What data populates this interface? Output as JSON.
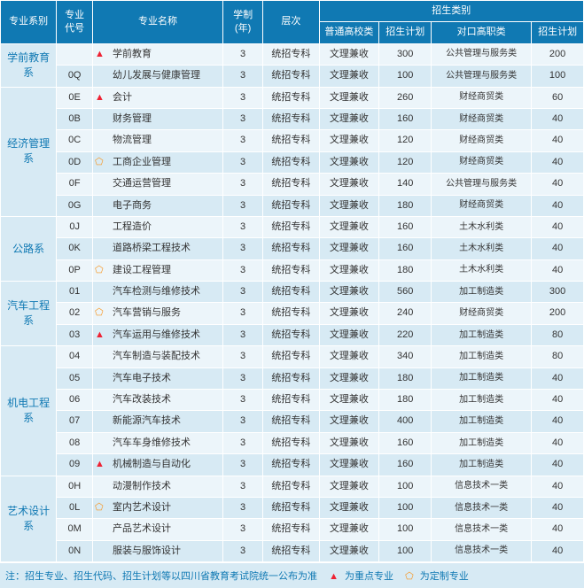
{
  "header": {
    "dept": "专业系别",
    "code": "专业\n代号",
    "name": "专业名称",
    "years": "学制\n(年)",
    "level": "层次",
    "enroll_group": "招生类别",
    "cat1": "普通高校类",
    "plan1": "招生计划",
    "cat2": "对口高职类",
    "plan2": "招生计划"
  },
  "departments": [
    {
      "name": "学前教育系",
      "rows": [
        {
          "code": "",
          "marker": "tri",
          "major": "学前教育",
          "years": "3",
          "level": "统招专科",
          "cat1": "文理兼收",
          "plan1": "300",
          "cat2": "公共管理与服务类",
          "plan2": "200"
        },
        {
          "code": "0Q",
          "marker": "",
          "major": "幼儿发展与健康管理",
          "years": "3",
          "level": "统招专科",
          "cat1": "文理兼收",
          "plan1": "100",
          "cat2": "公共管理与服务类",
          "plan2": "100"
        }
      ]
    },
    {
      "name": "经济管理系",
      "rows": [
        {
          "code": "0E",
          "marker": "tri",
          "major": "会计",
          "years": "3",
          "level": "统招专科",
          "cat1": "文理兼收",
          "plan1": "260",
          "cat2": "财经商贸类",
          "plan2": "60"
        },
        {
          "code": "0B",
          "marker": "",
          "major": "财务管理",
          "years": "3",
          "level": "统招专科",
          "cat1": "文理兼收",
          "plan1": "160",
          "cat2": "财经商贸类",
          "plan2": "40"
        },
        {
          "code": "0C",
          "marker": "",
          "major": "物流管理",
          "years": "3",
          "level": "统招专科",
          "cat1": "文理兼收",
          "plan1": "120",
          "cat2": "财经商贸类",
          "plan2": "40"
        },
        {
          "code": "0D",
          "marker": "pent",
          "major": "工商企业管理",
          "years": "3",
          "level": "统招专科",
          "cat1": "文理兼收",
          "plan1": "120",
          "cat2": "财经商贸类",
          "plan2": "40"
        },
        {
          "code": "0F",
          "marker": "",
          "major": "交通运营管理",
          "years": "3",
          "level": "统招专科",
          "cat1": "文理兼收",
          "plan1": "140",
          "cat2": "公共管理与服务类",
          "plan2": "40"
        },
        {
          "code": "0G",
          "marker": "",
          "major": "电子商务",
          "years": "3",
          "level": "统招专科",
          "cat1": "文理兼收",
          "plan1": "180",
          "cat2": "财经商贸类",
          "plan2": "40"
        }
      ]
    },
    {
      "name": "公路系",
      "rows": [
        {
          "code": "0J",
          "marker": "",
          "major": "工程造价",
          "years": "3",
          "level": "统招专科",
          "cat1": "文理兼收",
          "plan1": "160",
          "cat2": "土木水利类",
          "plan2": "40"
        },
        {
          "code": "0K",
          "marker": "",
          "major": "道路桥梁工程技术",
          "years": "3",
          "level": "统招专科",
          "cat1": "文理兼收",
          "plan1": "160",
          "cat2": "土木水利类",
          "plan2": "40"
        },
        {
          "code": "0P",
          "marker": "pent",
          "major": "建设工程管理",
          "years": "3",
          "level": "统招专科",
          "cat1": "文理兼收",
          "plan1": "180",
          "cat2": "土木水利类",
          "plan2": "40"
        }
      ]
    },
    {
      "name": "汽车工程系",
      "rows": [
        {
          "code": "01",
          "marker": "",
          "major": "汽车检测与维修技术",
          "years": "3",
          "level": "统招专科",
          "cat1": "文理兼收",
          "plan1": "560",
          "cat2": "加工制造类",
          "plan2": "300"
        },
        {
          "code": "02",
          "marker": "pent",
          "major": "汽车营销与服务",
          "years": "3",
          "level": "统招专科",
          "cat1": "文理兼收",
          "plan1": "240",
          "cat2": "财经商贸类",
          "plan2": "200"
        },
        {
          "code": "03",
          "marker": "tri",
          "major": "汽车运用与维修技术",
          "years": "3",
          "level": "统招专科",
          "cat1": "文理兼收",
          "plan1": "220",
          "cat2": "加工制造类",
          "plan2": "80"
        }
      ]
    },
    {
      "name": "机电工程系",
      "rows": [
        {
          "code": "04",
          "marker": "",
          "major": "汽车制造与装配技术",
          "years": "3",
          "level": "统招专科",
          "cat1": "文理兼收",
          "plan1": "340",
          "cat2": "加工制造类",
          "plan2": "80"
        },
        {
          "code": "05",
          "marker": "",
          "major": "汽车电子技术",
          "years": "3",
          "level": "统招专科",
          "cat1": "文理兼收",
          "plan1": "180",
          "cat2": "加工制造类",
          "plan2": "40"
        },
        {
          "code": "06",
          "marker": "",
          "major": "汽车改装技术",
          "years": "3",
          "level": "统招专科",
          "cat1": "文理兼收",
          "plan1": "180",
          "cat2": "加工制造类",
          "plan2": "40"
        },
        {
          "code": "07",
          "marker": "",
          "major": "新能源汽车技术",
          "years": "3",
          "level": "统招专科",
          "cat1": "文理兼收",
          "plan1": "400",
          "cat2": "加工制造类",
          "plan2": "40"
        },
        {
          "code": "08",
          "marker": "",
          "major": "汽车车身维修技术",
          "years": "3",
          "level": "统招专科",
          "cat1": "文理兼收",
          "plan1": "160",
          "cat2": "加工制造类",
          "plan2": "40"
        },
        {
          "code": "09",
          "marker": "tri",
          "major": "机械制造与自动化",
          "years": "3",
          "level": "统招专科",
          "cat1": "文理兼收",
          "plan1": "160",
          "cat2": "加工制造类",
          "plan2": "40"
        }
      ]
    },
    {
      "name": "艺术设计系",
      "rows": [
        {
          "code": "0H",
          "marker": "",
          "major": "动漫制作技术",
          "years": "3",
          "level": "统招专科",
          "cat1": "文理兼收",
          "plan1": "100",
          "cat2": "信息技术一类",
          "plan2": "40"
        },
        {
          "code": "0L",
          "marker": "pent",
          "major": "室内艺术设计",
          "years": "3",
          "level": "统招专科",
          "cat1": "文理兼收",
          "plan1": "100",
          "cat2": "信息技术一类",
          "plan2": "40"
        },
        {
          "code": "0M",
          "marker": "",
          "major": "产品艺术设计",
          "years": "3",
          "level": "统招专科",
          "cat1": "文理兼收",
          "plan1": "100",
          "cat2": "信息技术一类",
          "plan2": "40"
        },
        {
          "code": "0N",
          "marker": "",
          "major": "服装与服饰设计",
          "years": "3",
          "level": "统招专科",
          "cat1": "文理兼收",
          "plan1": "100",
          "cat2": "信息技术一类",
          "plan2": "40"
        }
      ]
    }
  ],
  "footer": {
    "text": "注：招生专业、招生代码、招生计划等以四川省教育考试院统一公布为准",
    "key_legend": "为重点专业",
    "custom_legend": "为定制专业"
  },
  "style": {
    "header_bg": "#1079b3",
    "odd_bg": "#ecf5fa",
    "even_bg": "#d7eaf4",
    "tri_color": "#e23",
    "pent_color": "#f7941d"
  }
}
